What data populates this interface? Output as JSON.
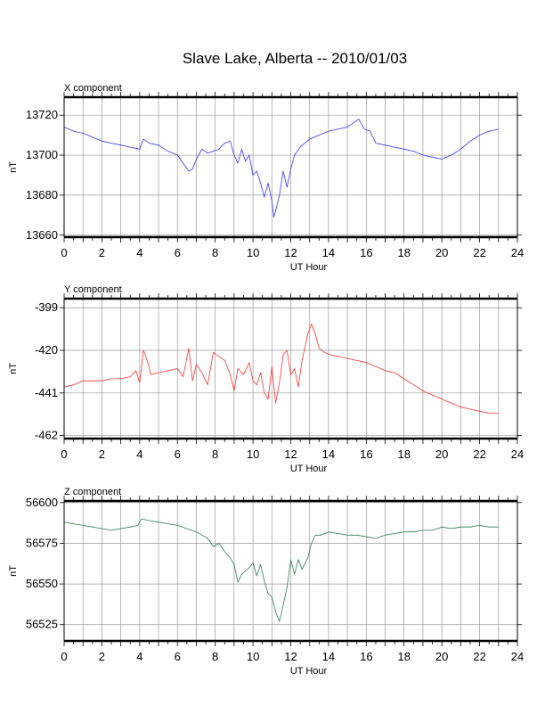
{
  "title": "Slave Lake, Alberta -- 2010/01/03",
  "chart_data": [
    {
      "type": "line",
      "panel_title": "X component",
      "xlabel": "UT Hour",
      "ylabel": "nT",
      "xlim": [
        0,
        24
      ],
      "ylim": [
        13659,
        13729
      ],
      "xticks": [
        "0",
        "2",
        "4",
        "6",
        "8",
        "10",
        "12",
        "14",
        "16",
        "18",
        "20",
        "22",
        "24"
      ],
      "yticks": [
        13660,
        13680,
        13700,
        13720
      ],
      "ytick_labels": [
        "13660",
        "13680",
        "13700",
        "13720"
      ],
      "grid": true,
      "color": "#3333ff",
      "series": [
        {
          "x": [
            0,
            0.5,
            1,
            1.5,
            2,
            2.5,
            3,
            3.5,
            4,
            4.2,
            4.5,
            5,
            5.5,
            6,
            6.3,
            6.6,
            6.8,
            7,
            7.3,
            7.6,
            7.9,
            8.2,
            8.5,
            8.8,
            9,
            9.2,
            9.4,
            9.6,
            9.8,
            10,
            10.2,
            10.4,
            10.6,
            10.8,
            11,
            11.1,
            11.2,
            11.4,
            11.6,
            11.8,
            12,
            12.2,
            12.5,
            13,
            13.5,
            14,
            14.5,
            15,
            15.3,
            15.6,
            15.9,
            16.2,
            16.5,
            17,
            17.5,
            18,
            18.5,
            19,
            19.5,
            20,
            20.5,
            21,
            21.5,
            22,
            22.5,
            23
          ],
          "y": [
            13714,
            13712,
            13711,
            13709,
            13707,
            13706,
            13705,
            13704,
            13703,
            13708,
            13706,
            13705,
            13702,
            13700,
            13696,
            13692,
            13693,
            13698,
            13703,
            13701,
            13702,
            13703,
            13706,
            13707,
            13700,
            13696,
            13703,
            13697,
            13700,
            13690,
            13692,
            13686,
            13679,
            13686,
            13677,
            13669,
            13672,
            13680,
            13692,
            13684,
            13693,
            13700,
            13704,
            13708,
            13710,
            13712,
            13713,
            13714,
            13716,
            13718,
            13713,
            13712,
            13706,
            13705,
            13704,
            13703,
            13702,
            13700,
            13699,
            13698,
            13700,
            13703,
            13707,
            13710,
            13712,
            13713
          ]
        }
      ]
    },
    {
      "type": "line",
      "panel_title": "Y component",
      "xlabel": "UT Hour",
      "ylabel": "nT",
      "xlim": [
        0,
        24
      ],
      "ylim": [
        -463.5,
        -394.5
      ],
      "xticks": [
        "0",
        "2",
        "4",
        "6",
        "8",
        "10",
        "12",
        "14",
        "16",
        "18",
        "20",
        "22",
        "24"
      ],
      "yticks": [
        -462,
        -441,
        -420,
        -399
      ],
      "ytick_labels": [
        "-462",
        "-441",
        "-420",
        "-399"
      ],
      "grid": true,
      "color": "#ff3333",
      "series": [
        {
          "x": [
            0,
            0.5,
            1,
            1.5,
            2,
            2.5,
            3,
            3.5,
            3.8,
            4,
            4.2,
            4.4,
            4.6,
            5,
            5.5,
            6,
            6.3,
            6.6,
            6.8,
            7,
            7.3,
            7.6,
            7.9,
            8.2,
            8.5,
            8.8,
            9,
            9.2,
            9.5,
            9.8,
            10,
            10.2,
            10.4,
            10.6,
            10.8,
            11,
            11.2,
            11.4,
            11.6,
            11.8,
            12,
            12.2,
            12.4,
            12.6,
            12.9,
            13.1,
            13.3,
            13.5,
            13.8,
            14,
            14.5,
            15,
            15.5,
            16,
            16.5,
            17,
            17.5,
            18,
            18.5,
            19,
            19.5,
            20,
            20.5,
            21,
            21.5,
            22,
            22.5,
            23
          ],
          "y": [
            -438,
            -437,
            -435,
            -435,
            -435,
            -434,
            -434,
            -433,
            -430,
            -436,
            -420,
            -425,
            -432,
            -431,
            -430,
            -429,
            -433,
            -419,
            -435,
            -427,
            -431,
            -437,
            -421,
            -423,
            -425,
            -432,
            -440,
            -429,
            -432,
            -426,
            -435,
            -437,
            -431,
            -441,
            -444,
            -428,
            -446,
            -436,
            -422,
            -420,
            -432,
            -429,
            -438,
            -425,
            -412,
            -407,
            -412,
            -419,
            -421,
            -422,
            -423,
            -424,
            -425,
            -426,
            -428,
            -430,
            -431,
            -434,
            -437,
            -440,
            -442,
            -444,
            -446,
            -448,
            -449,
            -450,
            -451,
            -451
          ]
        }
      ]
    },
    {
      "type": "line",
      "panel_title": "Z component",
      "xlabel": "UT Hour",
      "ylabel": "nT",
      "xlim": [
        0,
        24
      ],
      "ylim": [
        56515,
        56601
      ],
      "xticks": [
        "0",
        "2",
        "4",
        "6",
        "8",
        "10",
        "12",
        "14",
        "16",
        "18",
        "20",
        "22",
        "24"
      ],
      "yticks": [
        56525,
        56550,
        56575,
        56600
      ],
      "ytick_labels": [
        "56525",
        "56550",
        "56575",
        "56600"
      ],
      "grid": true,
      "color": "#2e7d4f",
      "series": [
        {
          "x": [
            0,
            0.5,
            1,
            1.5,
            2,
            2.5,
            3,
            3.5,
            3.9,
            4.1,
            4.5,
            5,
            5.5,
            6,
            6.5,
            7,
            7.3,
            7.6,
            7.9,
            8.2,
            8.5,
            8.8,
            9,
            9.2,
            9.4,
            9.6,
            9.8,
            10,
            10.2,
            10.4,
            10.6,
            10.8,
            11,
            11.2,
            11.4,
            11.6,
            11.8,
            12,
            12.2,
            12.4,
            12.6,
            12.9,
            13.1,
            13.3,
            13.6,
            14,
            14.5,
            15,
            15.5,
            16,
            16.5,
            17,
            17.5,
            18,
            18.5,
            19,
            19.5,
            20,
            20.5,
            21,
            21.5,
            22,
            22.5,
            23
          ],
          "y": [
            56588,
            56587,
            56586,
            56585,
            56584,
            56583,
            56584,
            56585,
            56586,
            56590,
            56589,
            56588,
            56587,
            56586,
            56584,
            56582,
            56580,
            56578,
            56573,
            56575,
            56570,
            56566,
            56562,
            56551,
            56556,
            56558,
            56560,
            56563,
            56555,
            56562,
            56552,
            56544,
            56542,
            56533,
            56527,
            56537,
            56548,
            56565,
            56556,
            56565,
            56559,
            56566,
            56575,
            56580,
            56580,
            56582,
            56581,
            56580,
            56580,
            56579,
            56578,
            56580,
            56581,
            56582,
            56582,
            56583,
            56583,
            56585,
            56584,
            56585,
            56585,
            56586,
            56585,
            56585
          ]
        }
      ]
    }
  ]
}
